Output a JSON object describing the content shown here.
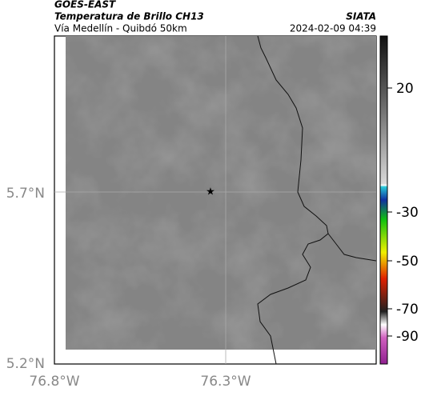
{
  "header": {
    "title": "GOES-EAST",
    "subtitle": "Temperatura de Brillo CH13",
    "location": "Vía Medellín - Quibdó 50km",
    "source": "SIATA",
    "datetime": "2024-02-09 04:39"
  },
  "map": {
    "lat_labels": [
      "5.7°N",
      "5.2°N"
    ],
    "lon_labels": [
      "76.8°W",
      "76.3°W"
    ]
  },
  "colorbar": {
    "ticks": [
      20,
      -30,
      -50,
      -70,
      -90
    ]
  }
}
